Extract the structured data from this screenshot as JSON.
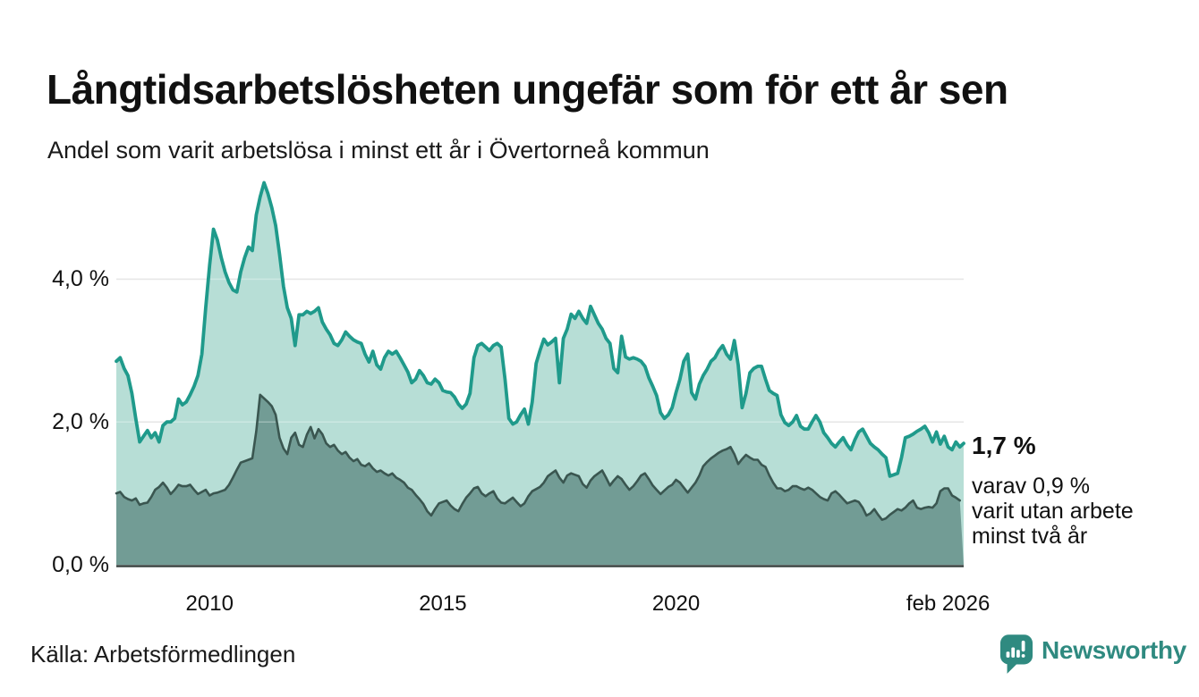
{
  "header": {
    "title": "Långtidsarbetslösheten ungefär som för ett år sen",
    "subtitle": "Andel som varit arbetslösa i minst ett år i Övertorneå kommun"
  },
  "chart_data": {
    "type": "area",
    "frequency": "monthly",
    "x_start_label": "jan 2008",
    "x_end_label": "feb 2026",
    "unit": "%",
    "ylim": [
      0,
      5.5
    ],
    "grid": true,
    "grid_color": "#dcdcdc",
    "axis_color": "#37403e",
    "y_ticks": [
      {
        "label": "0,0 %",
        "value": 0
      },
      {
        "label": "2,0 %",
        "value": 2
      },
      {
        "label": "4,0 %",
        "value": 4
      }
    ],
    "x_ticks": [
      {
        "label": "2010",
        "index": 24
      },
      {
        "label": "2015",
        "index": 84
      },
      {
        "label": "2020",
        "index": 144
      },
      {
        "label": "feb 2026",
        "index": 214
      }
    ],
    "series": [
      {
        "name": "Arbetslösa minst ett år",
        "line_color": "#1f9a8b",
        "fill_color": "#b7ded6",
        "values": [
          2.85,
          2.9,
          2.75,
          2.65,
          2.4,
          2.05,
          1.72,
          1.8,
          1.88,
          1.78,
          1.85,
          1.72,
          1.95,
          2.0,
          2.0,
          2.05,
          2.32,
          2.24,
          2.28,
          2.38,
          2.5,
          2.65,
          2.95,
          3.6,
          4.2,
          4.7,
          4.55,
          4.3,
          4.1,
          3.95,
          3.85,
          3.82,
          4.1,
          4.3,
          4.45,
          4.4,
          4.9,
          5.15,
          5.35,
          5.2,
          5.0,
          4.75,
          4.35,
          3.9,
          3.6,
          3.45,
          3.07,
          3.5,
          3.5,
          3.55,
          3.52,
          3.55,
          3.6,
          3.4,
          3.3,
          3.22,
          3.1,
          3.07,
          3.15,
          3.26,
          3.2,
          3.15,
          3.12,
          3.1,
          2.95,
          2.84,
          2.99,
          2.8,
          2.74,
          2.9,
          2.99,
          2.95,
          2.99,
          2.9,
          2.8,
          2.7,
          2.55,
          2.6,
          2.72,
          2.65,
          2.55,
          2.53,
          2.6,
          2.55,
          2.44,
          2.42,
          2.41,
          2.35,
          2.25,
          2.19,
          2.25,
          2.4,
          2.9,
          3.07,
          3.1,
          3.05,
          3.0,
          3.07,
          3.1,
          3.05,
          2.6,
          2.05,
          1.97,
          2.0,
          2.1,
          2.18,
          1.97,
          2.28,
          2.82,
          3.0,
          3.16,
          3.08,
          3.12,
          3.17,
          2.55,
          3.17,
          3.3,
          3.51,
          3.45,
          3.55,
          3.45,
          3.38,
          3.62,
          3.5,
          3.38,
          3.3,
          3.17,
          3.1,
          2.75,
          2.69,
          3.2,
          2.91,
          2.88,
          2.9,
          2.88,
          2.85,
          2.78,
          2.62,
          2.5,
          2.37,
          2.13,
          2.05,
          2.1,
          2.2,
          2.41,
          2.6,
          2.85,
          2.95,
          2.41,
          2.32,
          2.53,
          2.65,
          2.74,
          2.85,
          2.9,
          3.0,
          3.07,
          2.95,
          2.88,
          3.14,
          2.8,
          2.2,
          2.4,
          2.69,
          2.75,
          2.78,
          2.78,
          2.6,
          2.44,
          2.4,
          2.37,
          2.1,
          1.99,
          1.95,
          2.0,
          2.09,
          1.94,
          1.9,
          1.9,
          2.0,
          2.09,
          2.0,
          1.85,
          1.78,
          1.7,
          1.65,
          1.72,
          1.78,
          1.68,
          1.61,
          1.75,
          1.86,
          1.9,
          1.8,
          1.7,
          1.65,
          1.61,
          1.55,
          1.5,
          1.24,
          1.26,
          1.28,
          1.5,
          1.78,
          1.8,
          1.83,
          1.87,
          1.9,
          1.94,
          1.85,
          1.72,
          1.86,
          1.69,
          1.8,
          1.65,
          1.61,
          1.72,
          1.65,
          1.7
        ]
      },
      {
        "name": "Varav arbetslösa minst två år",
        "line_color": "#3a5650",
        "fill_color": "#729c95",
        "values": [
          1.0,
          1.02,
          0.95,
          0.92,
          0.9,
          0.93,
          0.84,
          0.86,
          0.87,
          0.95,
          1.05,
          1.09,
          1.15,
          1.08,
          0.99,
          1.05,
          1.12,
          1.1,
          1.1,
          1.12,
          1.05,
          0.99,
          1.02,
          1.05,
          0.97,
          1.0,
          1.01,
          1.03,
          1.05,
          1.12,
          1.22,
          1.33,
          1.43,
          1.45,
          1.47,
          1.49,
          1.87,
          2.38,
          2.33,
          2.28,
          2.22,
          2.1,
          1.78,
          1.63,
          1.55,
          1.78,
          1.85,
          1.68,
          1.65,
          1.82,
          1.93,
          1.77,
          1.9,
          1.83,
          1.7,
          1.65,
          1.68,
          1.6,
          1.55,
          1.58,
          1.5,
          1.45,
          1.48,
          1.4,
          1.38,
          1.42,
          1.35,
          1.3,
          1.32,
          1.28,
          1.25,
          1.28,
          1.22,
          1.19,
          1.15,
          1.08,
          1.05,
          0.98,
          0.92,
          0.85,
          0.75,
          0.69,
          0.78,
          0.86,
          0.88,
          0.9,
          0.83,
          0.78,
          0.75,
          0.85,
          0.94,
          1.0,
          1.07,
          1.09,
          1.0,
          0.96,
          1.0,
          1.03,
          0.93,
          0.87,
          0.86,
          0.9,
          0.94,
          0.88,
          0.82,
          0.86,
          0.96,
          1.03,
          1.06,
          1.09,
          1.15,
          1.24,
          1.28,
          1.32,
          1.22,
          1.15,
          1.25,
          1.28,
          1.26,
          1.24,
          1.13,
          1.08,
          1.18,
          1.24,
          1.28,
          1.32,
          1.22,
          1.11,
          1.18,
          1.24,
          1.2,
          1.12,
          1.05,
          1.1,
          1.17,
          1.25,
          1.28,
          1.2,
          1.11,
          1.05,
          0.99,
          1.04,
          1.09,
          1.12,
          1.19,
          1.15,
          1.08,
          1.01,
          1.08,
          1.15,
          1.25,
          1.38,
          1.44,
          1.49,
          1.53,
          1.57,
          1.6,
          1.62,
          1.65,
          1.55,
          1.41,
          1.48,
          1.54,
          1.5,
          1.47,
          1.47,
          1.4,
          1.37,
          1.25,
          1.15,
          1.07,
          1.07,
          1.03,
          1.05,
          1.1,
          1.1,
          1.07,
          1.05,
          1.08,
          1.05,
          1.0,
          0.95,
          0.92,
          0.9,
          1.0,
          1.03,
          0.98,
          0.92,
          0.86,
          0.88,
          0.9,
          0.88,
          0.8,
          0.69,
          0.72,
          0.78,
          0.7,
          0.63,
          0.65,
          0.7,
          0.74,
          0.78,
          0.76,
          0.8,
          0.86,
          0.9,
          0.8,
          0.78,
          0.8,
          0.81,
          0.8,
          0.86,
          1.03,
          1.07,
          1.07,
          0.97,
          0.94,
          0.9
        ]
      }
    ],
    "annotation": {
      "latest_total": "1,7 %",
      "note_lines": [
        "varav 0,9 %",
        "varit utan arbete",
        "minst två år"
      ]
    }
  },
  "footer": {
    "source": "Källa: Arbetsförmedlingen",
    "brand": "Newsworthy",
    "brand_color": "#2f8a80"
  }
}
